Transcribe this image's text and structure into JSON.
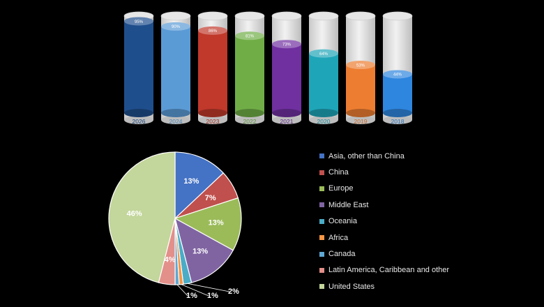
{
  "chart_data": [
    {
      "type": "bar",
      "categories": [
        "2026",
        "2024",
        "2023",
        "2022",
        "2021",
        "2020",
        "2019",
        "2018"
      ],
      "values": [
        95,
        90,
        86,
        81,
        73,
        64,
        53,
        44
      ],
      "value_labels": [
        "95%",
        "90%",
        "86%",
        "81%",
        "73%",
        "64%",
        "53%",
        "44%"
      ],
      "colors": [
        "#1f4e8c",
        "#5b9bd5",
        "#c0392b",
        "#70ad47",
        "#7030a0",
        "#1fa5b8",
        "#ed7d31",
        "#2e86de"
      ],
      "ylim": [
        0,
        100
      ],
      "grid": false,
      "style": "cylinder"
    },
    {
      "type": "pie",
      "labels": [
        "Asia, other than China",
        "China",
        "Europe",
        "Middle East",
        "Oceania",
        "Africa",
        "Canada",
        "Latin America, Caribbean and other",
        "United States"
      ],
      "values": [
        13,
        7,
        13,
        13,
        2,
        1,
        1,
        4,
        46
      ],
      "value_labels": [
        "13%",
        "7%",
        "13%",
        "13%",
        "2%",
        "1%",
        "1%",
        "4%",
        "46%"
      ],
      "colors": [
        "#4472c4",
        "#c0504d",
        "#9bbb59",
        "#8064a2",
        "#4bacc6",
        "#f79646",
        "#5fa8d3",
        "#e38f8a",
        "#c3d69b"
      ],
      "legend": "right"
    }
  ]
}
